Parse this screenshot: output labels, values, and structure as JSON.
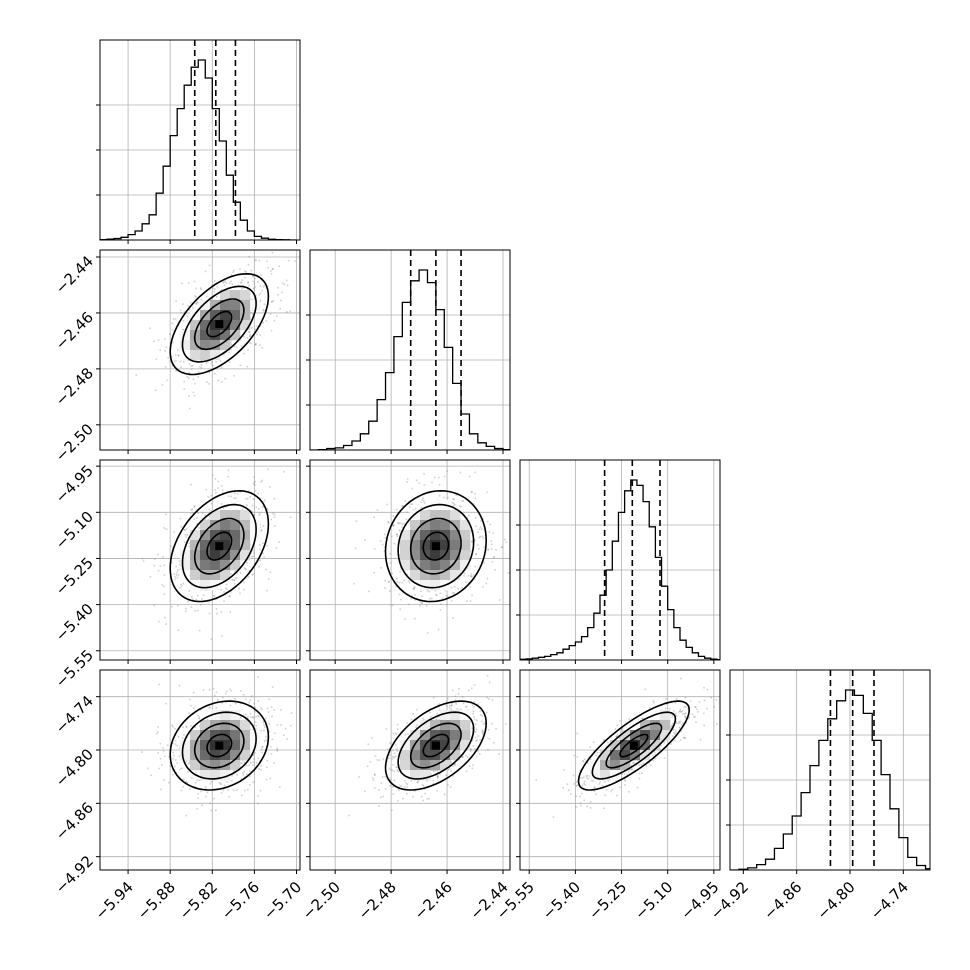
{
  "chart_data": {
    "type": "corner",
    "title": "",
    "grid": true,
    "parameters": [
      {
        "name": "",
        "mean": -5.81,
        "sd": 0.035,
        "range": [
          -5.98,
          -5.695
        ],
        "ticks": [
          -5.94,
          -5.88,
          -5.82,
          -5.76,
          -5.7
        ],
        "tick_labels": [
          "−5.94",
          "−5.88",
          "−5.82",
          "−5.76",
          "−5.70"
        ],
        "quantiles": [
          -5.845,
          -5.815,
          -5.787
        ]
      },
      {
        "name": "",
        "mean": -2.464,
        "sd": 0.009,
        "range": [
          -2.509,
          -2.4375
        ],
        "ticks": [
          -2.5,
          -2.48,
          -2.46,
          -2.44
        ],
        "tick_labels": [
          "−2.50",
          "−2.48",
          "−2.46",
          "−2.44"
        ],
        "quantiles": [
          -2.473,
          -2.464,
          -2.455
        ]
      },
      {
        "name": "",
        "mean": -5.21,
        "sd": 0.09,
        "range": [
          -5.58,
          -4.93
        ],
        "ticks": [
          -5.55,
          -5.4,
          -5.25,
          -5.1,
          -4.95
        ],
        "tick_labels": [
          "−5.55",
          "−5.40",
          "−5.25",
          "−5.10",
          "−4.95"
        ],
        "quantiles": [
          -5.305,
          -5.215,
          -5.125
        ]
      },
      {
        "name": "",
        "mean": -4.795,
        "sd": 0.025,
        "range": [
          -4.935,
          -4.71
        ],
        "ticks": [
          -4.92,
          -4.86,
          -4.8,
          -4.74
        ],
        "tick_labels": [
          "−4.92",
          "−4.86",
          "−4.80",
          "−4.74"
        ],
        "quantiles": [
          -4.822,
          -4.797,
          -4.773
        ]
      }
    ],
    "histograms": [
      {
        "param": 0,
        "bins": [
          -5.98,
          -5.97,
          -5.96,
          -5.95,
          -5.94,
          -5.93,
          -5.92,
          -5.91,
          -5.9,
          -5.89,
          -5.88,
          -5.87,
          -5.86,
          -5.85,
          -5.84,
          -5.83,
          -5.82,
          -5.81,
          -5.8,
          -5.79,
          -5.78,
          -5.77,
          -5.76,
          -5.75,
          -5.74,
          -5.73,
          -5.72,
          -5.71,
          -5.7
        ],
        "counts": [
          0.002,
          0.005,
          0.008,
          0.015,
          0.03,
          0.05,
          0.09,
          0.14,
          0.26,
          0.41,
          0.58,
          0.73,
          0.86,
          0.96,
          1.0,
          0.9,
          0.73,
          0.55,
          0.36,
          0.21,
          0.11,
          0.05,
          0.02,
          0.01,
          0.004,
          0.002,
          0.001,
          0.0
        ]
      },
      {
        "param": 1,
        "bins": [
          -2.509,
          -2.506,
          -2.503,
          -2.5,
          -2.497,
          -2.494,
          -2.491,
          -2.488,
          -2.485,
          -2.482,
          -2.479,
          -2.476,
          -2.473,
          -2.47,
          -2.467,
          -2.464,
          -2.461,
          -2.458,
          -2.455,
          -2.452,
          -2.449,
          -2.446,
          -2.443,
          -2.44,
          -2.4375
        ],
        "counts": [
          0.0,
          0.002,
          0.008,
          0.012,
          0.025,
          0.05,
          0.09,
          0.16,
          0.28,
          0.43,
          0.63,
          0.82,
          0.94,
          1.0,
          0.93,
          0.78,
          0.57,
          0.37,
          0.2,
          0.09,
          0.04,
          0.02,
          0.008,
          0.002
        ]
      },
      {
        "param": 2,
        "bins": [
          -5.58,
          -5.56,
          -5.54,
          -5.52,
          -5.5,
          -5.48,
          -5.46,
          -5.44,
          -5.42,
          -5.4,
          -5.38,
          -5.36,
          -5.34,
          -5.32,
          -5.3,
          -5.28,
          -5.26,
          -5.24,
          -5.22,
          -5.2,
          -5.18,
          -5.16,
          -5.14,
          -5.12,
          -5.1,
          -5.08,
          -5.06,
          -5.04,
          -5.02,
          -5.0,
          -4.98,
          -4.96,
          -4.94,
          -4.93
        ],
        "counts": [
          0.004,
          0.006,
          0.01,
          0.015,
          0.02,
          0.03,
          0.04,
          0.06,
          0.08,
          0.1,
          0.13,
          0.18,
          0.26,
          0.36,
          0.5,
          0.66,
          0.82,
          0.94,
          1.0,
          0.97,
          0.88,
          0.74,
          0.57,
          0.41,
          0.28,
          0.18,
          0.11,
          0.07,
          0.04,
          0.02,
          0.01,
          0.005,
          0.002
        ]
      },
      {
        "param": 3,
        "bins": [
          -4.935,
          -4.925,
          -4.915,
          -4.905,
          -4.895,
          -4.885,
          -4.875,
          -4.865,
          -4.855,
          -4.845,
          -4.835,
          -4.825,
          -4.815,
          -4.805,
          -4.795,
          -4.785,
          -4.775,
          -4.765,
          -4.755,
          -4.745,
          -4.735,
          -4.725,
          -4.715,
          -4.71
        ],
        "counts": [
          0.0,
          0.004,
          0.012,
          0.03,
          0.06,
          0.12,
          0.2,
          0.3,
          0.43,
          0.58,
          0.72,
          0.84,
          0.94,
          1.0,
          0.97,
          0.87,
          0.72,
          0.53,
          0.34,
          0.18,
          0.07,
          0.025,
          0.007
        ]
      }
    ],
    "correlations": [
      [
        1,
        0.55,
        0.4,
        0.2
      ],
      [
        0.55,
        1,
        0.1,
        0.5
      ],
      [
        0.4,
        0.1,
        1,
        0.8
      ],
      [
        0.2,
        0.5,
        0.8,
        1
      ]
    ],
    "contour_sigmas": [
      0.5,
      1.0,
      1.5,
      2.0
    ]
  }
}
